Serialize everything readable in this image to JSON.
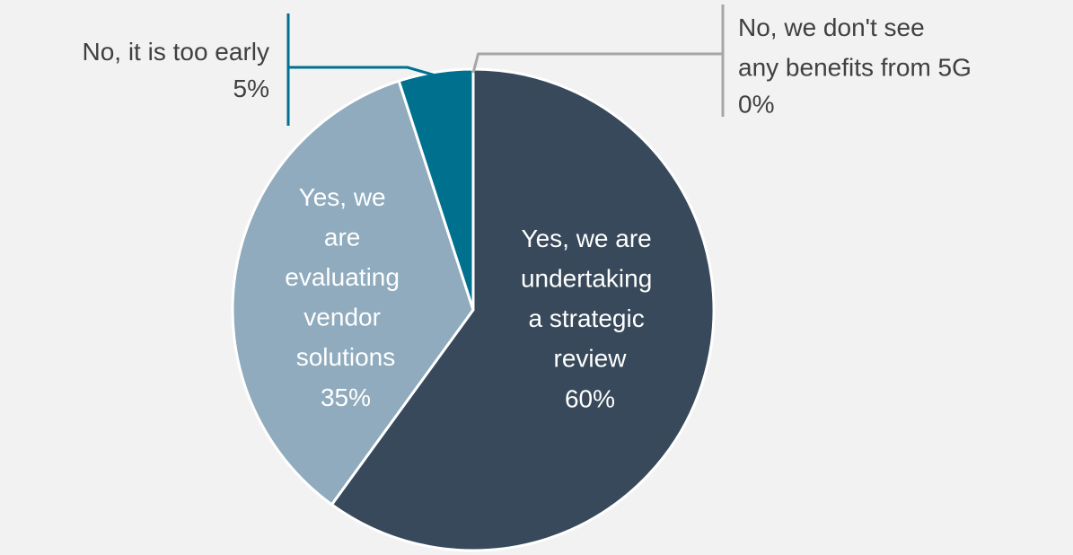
{
  "chart_data": {
    "type": "pie",
    "categories": [
      "Yes, we are undertaking a strategic review",
      "Yes, we are evaluating vendor solutions",
      "No, it is too early",
      "No, we don't see any benefits from 5G"
    ],
    "values": [
      60,
      35,
      5,
      0
    ],
    "value_labels": [
      "60%",
      "35%",
      "5%",
      "0%"
    ],
    "colors": [
      "#37495a",
      "#8fabbd",
      "#00708f",
      "#a6a6a6"
    ]
  }
}
